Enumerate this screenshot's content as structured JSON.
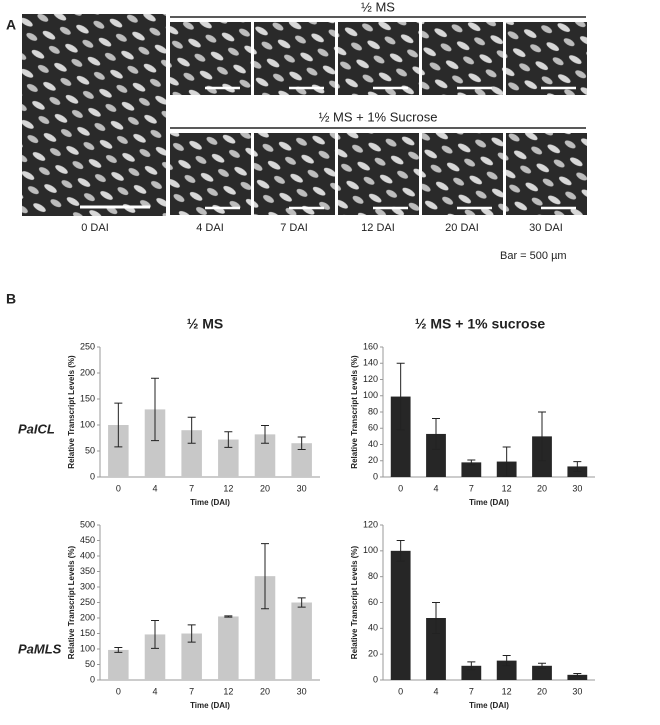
{
  "panel_a": {
    "label": "A",
    "top_header": "½ MS",
    "bottom_header": "½ MS + 1% Sucrose",
    "first_label": "0 DAI",
    "column_labels": [
      "4 DAI",
      "7 DAI",
      "12 DAI",
      "20 DAI",
      "30 DAI"
    ],
    "scale_note": "Bar = 500 µm"
  },
  "panel_b": {
    "label": "B",
    "columns": [
      "½ MS",
      "½ MS + 1% sucrose"
    ],
    "rows": [
      "PaICL",
      "PaMLS"
    ]
  },
  "chart_data": [
    {
      "type": "bar",
      "categories": [
        "0",
        "4",
        "7",
        "12",
        "20",
        "30"
      ],
      "values": [
        100,
        130,
        90,
        72,
        82,
        65
      ],
      "errors": [
        42,
        60,
        25,
        15,
        17,
        12
      ],
      "color": "#c8c8c8",
      "ylim": [
        0,
        250
      ],
      "yticks": [
        0,
        50,
        100,
        150,
        200,
        250
      ],
      "xlabel": "Time (DAI)",
      "ylabel": "Relative Transcript Levels (%)"
    },
    {
      "type": "bar",
      "categories": [
        "0",
        "4",
        "7",
        "12",
        "20",
        "30"
      ],
      "values": [
        99,
        53,
        18,
        19,
        50,
        13
      ],
      "errors": [
        41,
        19,
        3,
        18,
        30,
        6
      ],
      "color": "#262626",
      "ylim": [
        0,
        160
      ],
      "yticks": [
        0,
        20,
        40,
        60,
        80,
        100,
        120,
        140,
        160
      ],
      "xlabel": "Time (DAI)",
      "ylabel": "Relative Transcript Levels (%)"
    },
    {
      "type": "bar",
      "categories": [
        "0",
        "4",
        "7",
        "12",
        "20",
        "30"
      ],
      "values": [
        97,
        147,
        150,
        205,
        335,
        250
      ],
      "errors": [
        8,
        45,
        28,
        2,
        105,
        15
      ],
      "color": "#c8c8c8",
      "ylim": [
        0,
        500
      ],
      "yticks": [
        0,
        50,
        100,
        150,
        200,
        250,
        300,
        350,
        400,
        450,
        500
      ],
      "xlabel": "Time (DAI)",
      "ylabel": "Relative Transcript Levels (%)"
    },
    {
      "type": "bar",
      "categories": [
        "0",
        "4",
        "7",
        "12",
        "20",
        "30"
      ],
      "values": [
        100,
        48,
        11,
        15,
        11,
        4
      ],
      "errors": [
        8,
        12,
        3,
        4,
        2,
        1
      ],
      "color": "#262626",
      "ylim": [
        0,
        120
      ],
      "yticks": [
        0,
        20,
        40,
        60,
        80,
        100,
        120
      ],
      "xlabel": "Time (DAI)",
      "ylabel": "Relative Transcript Levels (%)"
    }
  ]
}
